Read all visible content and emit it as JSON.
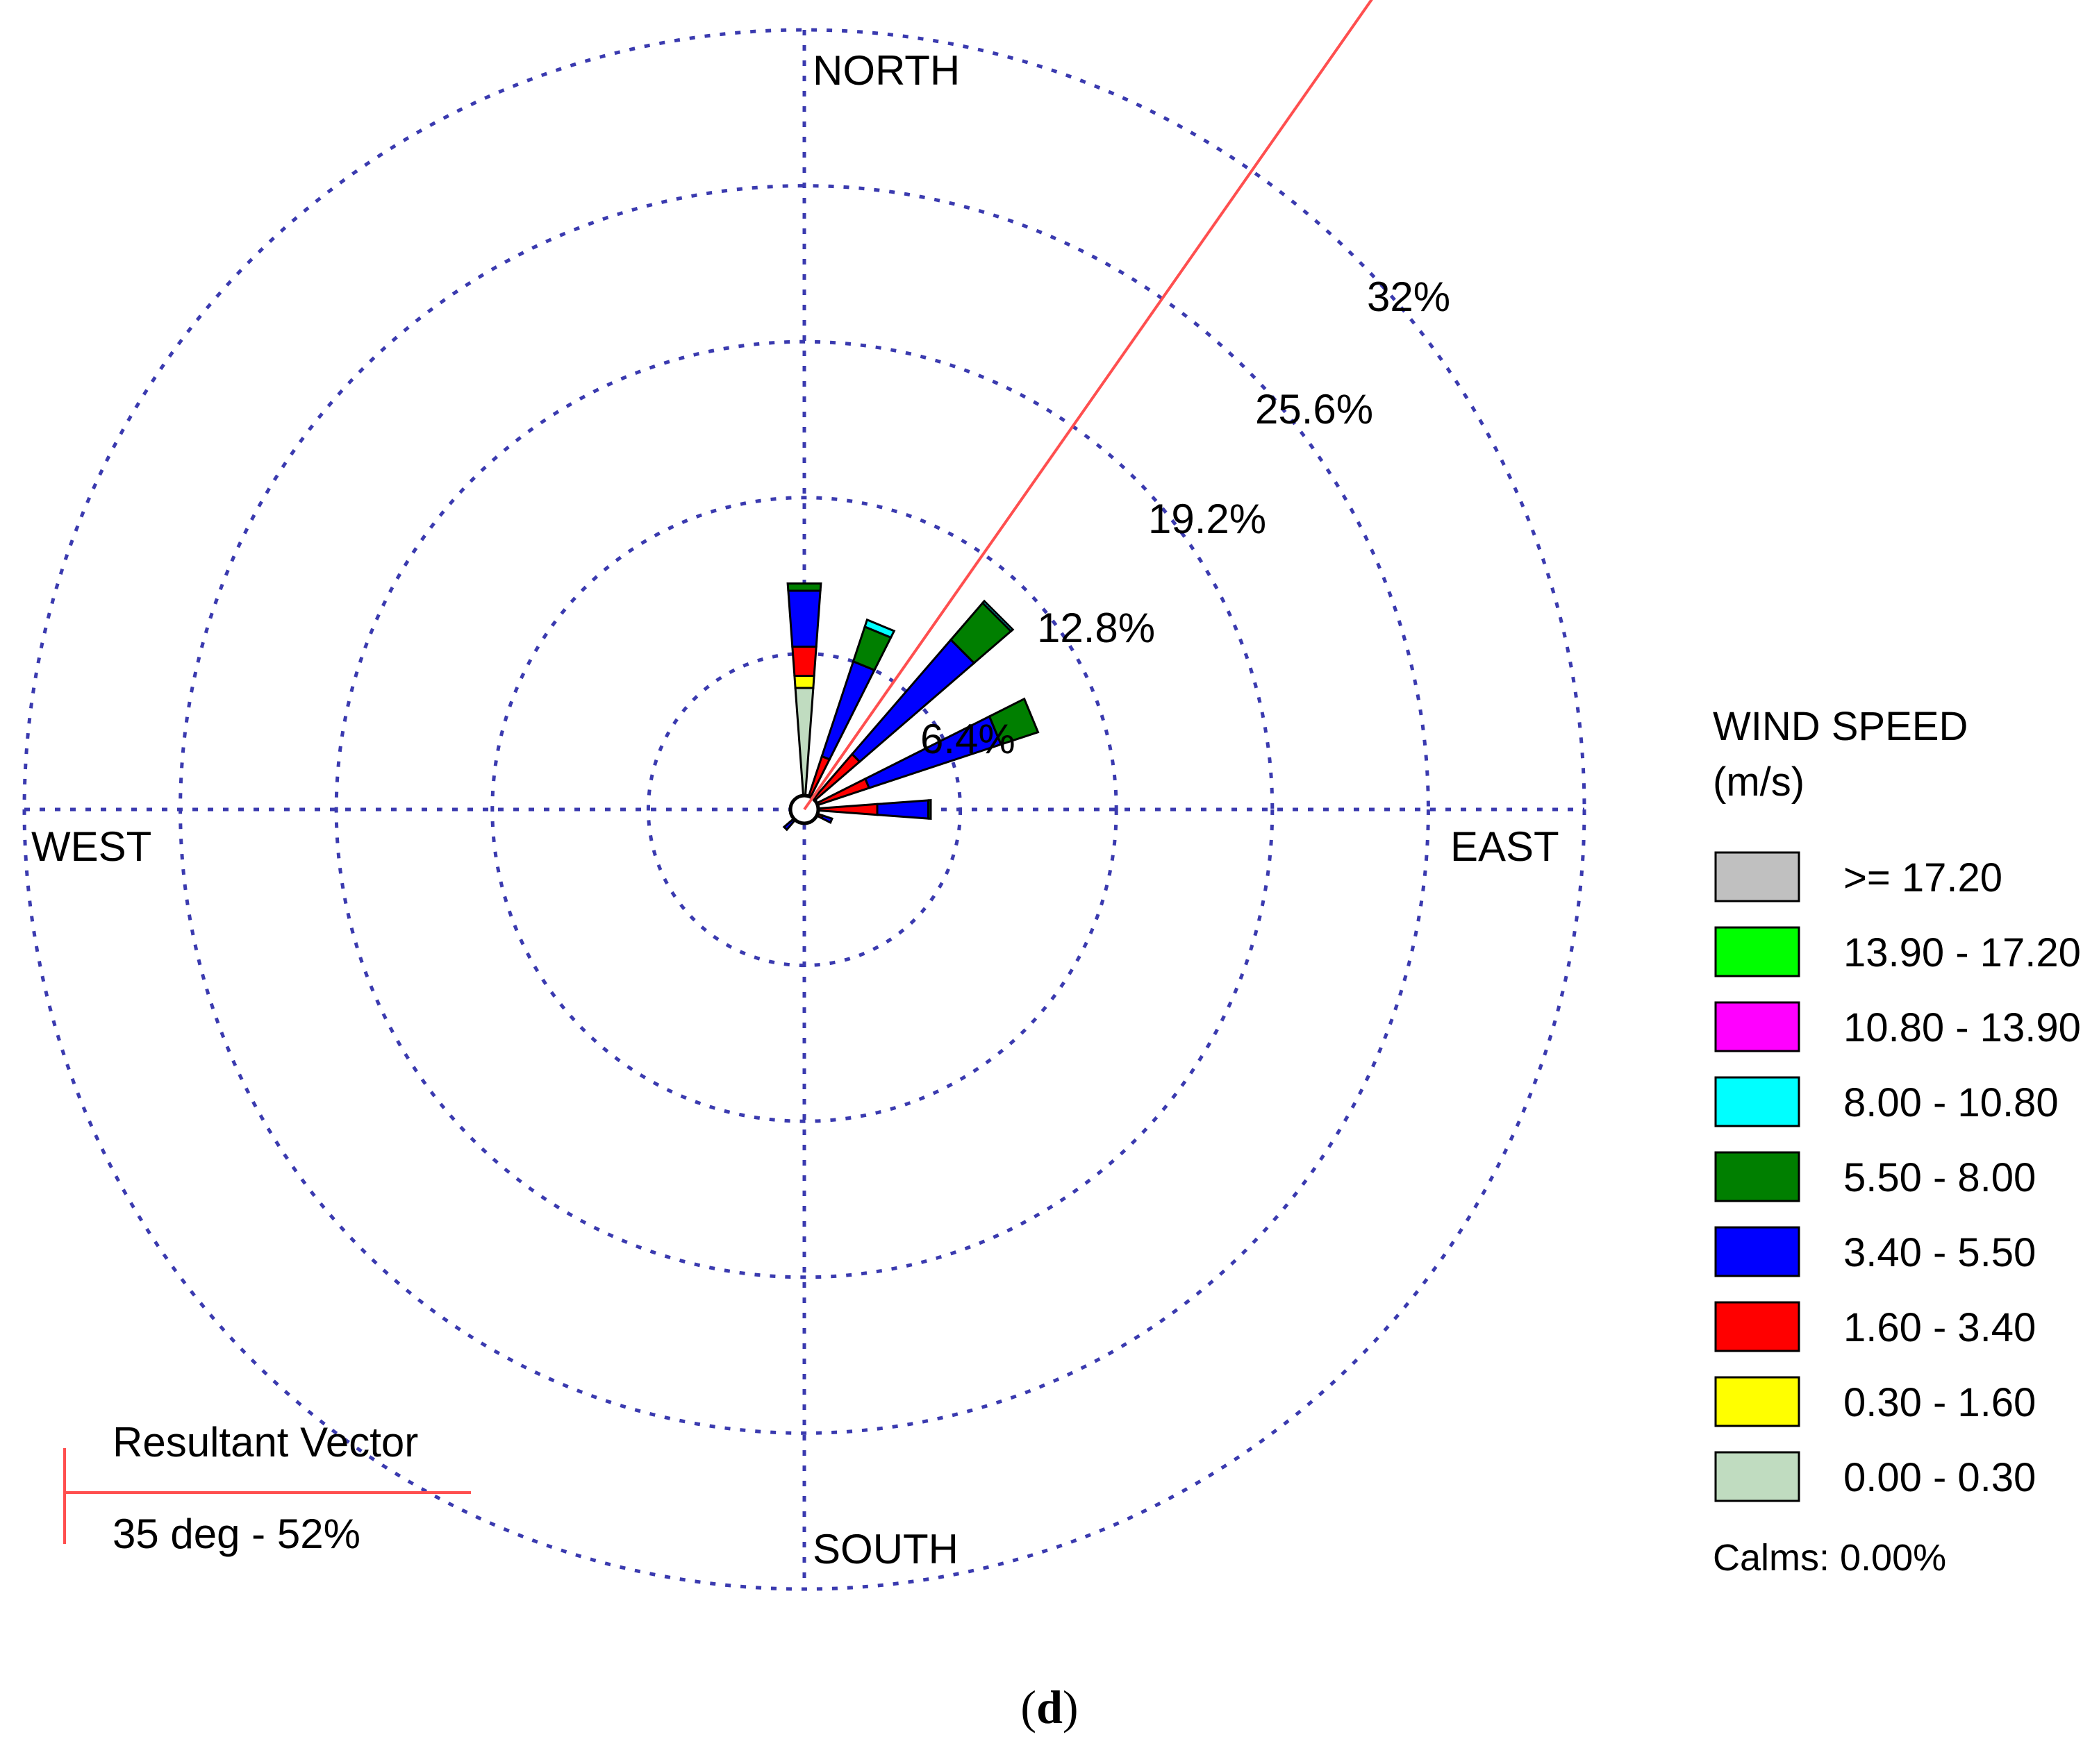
{
  "chart_data": {
    "type": "windrose",
    "directions": [
      "N",
      "NNE",
      "NE",
      "ENE",
      "E",
      "ESE",
      "SE",
      "SSE",
      "S",
      "SSW",
      "SW",
      "WSW",
      "W",
      "WNW",
      "NW",
      "NNW"
    ],
    "direction_labels": {
      "north": "NORTH",
      "east": "EAST",
      "south": "SOUTH",
      "west": "WEST"
    },
    "rings": [
      {
        "value": 6.4,
        "label": "6.4%"
      },
      {
        "value": 12.8,
        "label": "12.8%"
      },
      {
        "value": 19.2,
        "label": "19.2%"
      },
      {
        "value": 25.6,
        "label": "25.6%"
      },
      {
        "value": 32,
        "label": "32%"
      }
    ],
    "rmax": 32,
    "grid": true,
    "legend": {
      "title_line1": "WIND SPEED",
      "title_line2": "(m/s)",
      "position": "right",
      "calms": "Calms: 0.00%",
      "bins": [
        {
          "label": ">= 17.20",
          "color": "#c0c0c0"
        },
        {
          "label": "13.90 - 17.20",
          "color": "#00ff00"
        },
        {
          "label": "10.80 - 13.90",
          "color": "#ff00ff"
        },
        {
          "label": "8.00 - 10.80",
          "color": "#00ffff"
        },
        {
          "label": "5.50 - 8.00",
          "color": "#007f00"
        },
        {
          "label": "3.40 - 5.50",
          "color": "#0000ff"
        },
        {
          "label": "1.60 - 3.40",
          "color": "#ff0000"
        },
        {
          "label": "0.30 - 1.60",
          "color": "#ffff00"
        },
        {
          "label": "0.00 - 0.30",
          "color": "#c0dcc0"
        }
      ]
    },
    "series": [
      {
        "name": "0.00 - 0.30",
        "values": [
          5.0,
          0.2,
          0.2,
          0.1,
          0.1,
          0.1,
          0.0,
          0.0,
          0.0,
          0.0,
          0.1,
          0.1,
          0.0,
          0.0,
          0.0,
          0.0
        ]
      },
      {
        "name": "0.30 - 1.60",
        "values": [
          0.5,
          0.3,
          0.4,
          0.3,
          0.3,
          0.2,
          0.1,
          0.1,
          0.0,
          0.1,
          0.1,
          0.1,
          0.0,
          0.0,
          0.0,
          0.0
        ]
      },
      {
        "name": "1.60 - 3.40",
        "values": [
          1.2,
          1.8,
          2.4,
          2.4,
          2.6,
          0.5,
          0.1,
          0.0,
          0.0,
          0.1,
          0.4,
          0.2,
          0.1,
          0.0,
          0.1,
          0.1
        ]
      },
      {
        "name": "3.40 - 5.50",
        "values": [
          2.3,
          4.1,
          6.2,
          5.7,
          2.1,
          0.4,
          0.0,
          0.0,
          0.0,
          0.0,
          0.5,
          0.2,
          0.0,
          0.0,
          0.0,
          0.0
        ]
      },
      {
        "name": "5.50 - 8.00",
        "values": [
          0.3,
          1.5,
          2.0,
          1.6,
          0.1,
          0.0,
          0.0,
          0.0,
          0.0,
          0.0,
          0.0,
          0.0,
          0.0,
          0.0,
          0.0,
          0.0
        ]
      },
      {
        "name": "8.00 - 10.80",
        "values": [
          0.0,
          0.3,
          0.1,
          0.0,
          0.0,
          0.0,
          0.0,
          0.0,
          0.0,
          0.0,
          0.0,
          0.0,
          0.0,
          0.0,
          0.0,
          0.0
        ]
      },
      {
        "name": "10.80 - 13.90",
        "values": [
          0,
          0,
          0,
          0,
          0,
          0,
          0,
          0,
          0,
          0,
          0,
          0,
          0,
          0,
          0,
          0
        ]
      },
      {
        "name": "13.90 - 17.20",
        "values": [
          0,
          0,
          0,
          0,
          0,
          0,
          0,
          0,
          0,
          0,
          0,
          0,
          0,
          0,
          0,
          0
        ]
      },
      {
        "name": ">= 17.20",
        "values": [
          0,
          0,
          0,
          0,
          0,
          0,
          0,
          0,
          0,
          0,
          0,
          0,
          0,
          0,
          0,
          0
        ]
      }
    ],
    "resultant_vector": {
      "title": "Resultant Vector",
      "label": "35 deg - 52%",
      "direction_deg": 35,
      "percent": 52,
      "color": "#ff4f4f"
    }
  },
  "caption": {
    "paren_open": "(",
    "letter": "d",
    "paren_close": ")"
  }
}
